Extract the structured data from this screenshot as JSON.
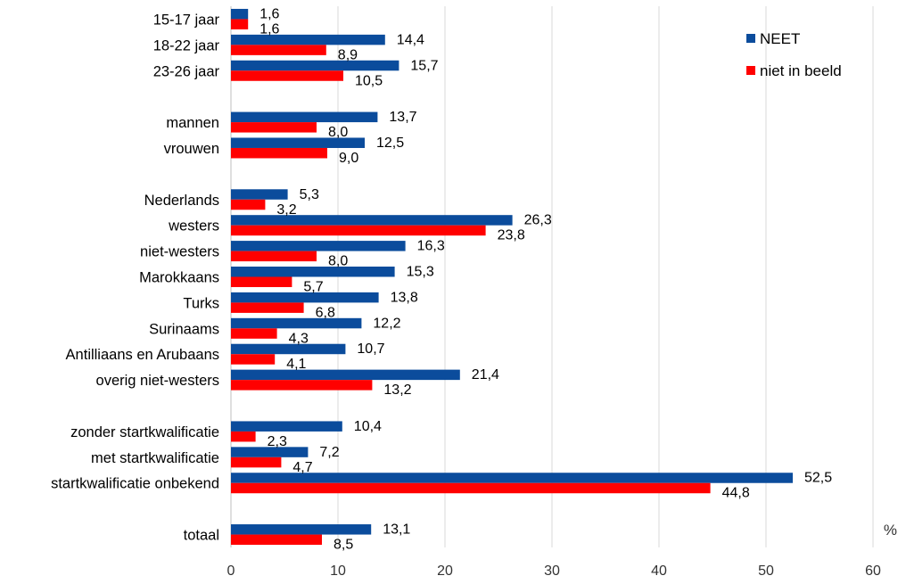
{
  "chart_data": {
    "type": "bar",
    "orientation": "horizontal",
    "categories": [
      "15-17 jaar",
      "18-22 jaar",
      "23-26 jaar",
      "",
      "mannen",
      "vrouwen",
      "",
      "Nederlands",
      "westers",
      "niet-westers",
      "Marokkaans",
      "Turks",
      "Surinaams",
      "Antilliaans en Arubaans",
      "overig niet-westers",
      "",
      "zonder startkwalificatie",
      "met startkwalificatie",
      "startkwalificatie onbekend",
      "",
      "totaal"
    ],
    "series": [
      {
        "name": "NEET",
        "color": "#0B4C9C",
        "values": [
          1.6,
          14.4,
          15.7,
          null,
          13.7,
          12.5,
          null,
          5.3,
          26.3,
          16.3,
          15.3,
          13.8,
          12.2,
          10.7,
          21.4,
          null,
          10.4,
          7.2,
          52.5,
          null,
          13.1
        ],
        "labels": [
          "1,6",
          "14,4",
          "15,7",
          "",
          "13,7",
          "12,5",
          "",
          "5,3",
          "26,3",
          "16,3",
          "15,3",
          "13,8",
          "12,2",
          "10,7",
          "21,4",
          "",
          "10,4",
          "7,2",
          "52,5",
          "",
          "13,1"
        ]
      },
      {
        "name": "niet in beeld",
        "color": "#FF0000",
        "values": [
          1.6,
          8.9,
          10.5,
          null,
          8.0,
          9.0,
          null,
          3.2,
          23.8,
          8.0,
          5.7,
          6.8,
          4.3,
          4.1,
          13.2,
          null,
          2.3,
          4.7,
          44.8,
          null,
          8.5
        ],
        "labels": [
          "1,6",
          "8,9",
          "10,5",
          "",
          "8,0",
          "9,0",
          "",
          "3,2",
          "23,8",
          "8,0",
          "5,7",
          "6,8",
          "4,3",
          "4,1",
          "13,2",
          "",
          "2,3",
          "4,7",
          "44,8",
          "",
          "8,5"
        ]
      }
    ],
    "xlim": [
      0,
      60
    ],
    "xticks": [
      0,
      10,
      20,
      30,
      40,
      50,
      60
    ],
    "xunit": "%",
    "grid": true,
    "legend_position": "top-right"
  }
}
